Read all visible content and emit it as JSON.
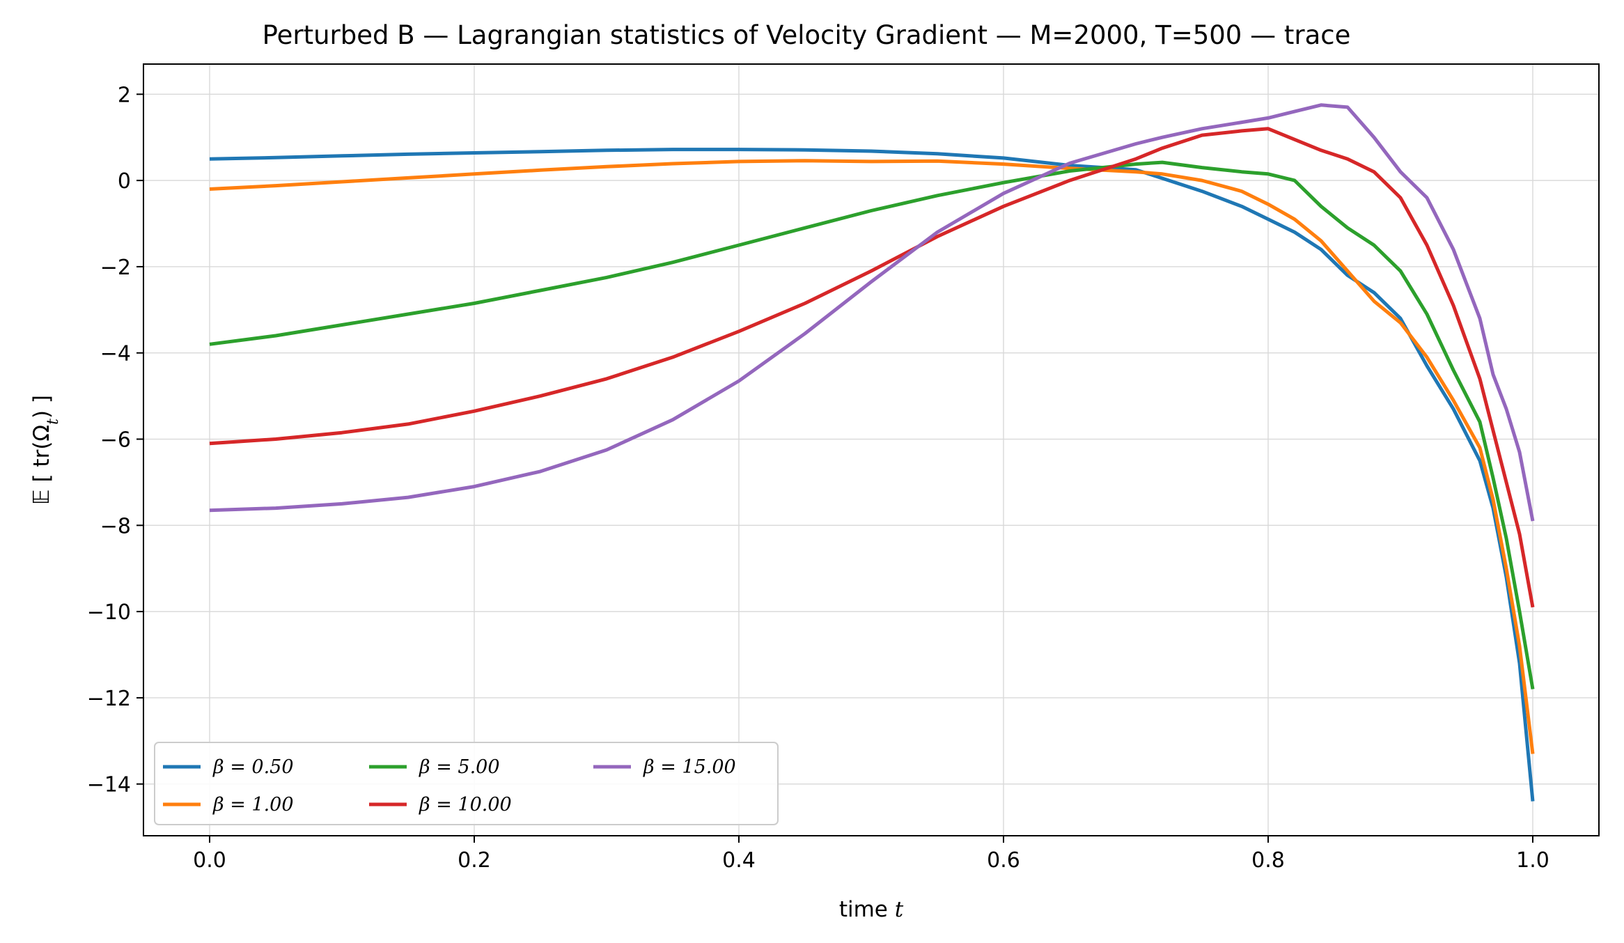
{
  "chart_data": {
    "type": "line",
    "title": "Perturbed B — Lagrangian statistics of Velocity Gradient — M=2000, T=500 — trace",
    "xlabel": "time t",
    "ylabel": "𝔼 [ tr(Ω_t) ]",
    "xlim": [
      -0.05,
      1.05
    ],
    "ylim": [
      -15.2,
      2.7
    ],
    "xticks": [
      0.0,
      0.2,
      0.4,
      0.6,
      0.8,
      1.0
    ],
    "xtick_labels": [
      "0.0",
      "0.2",
      "0.4",
      "0.6",
      "0.8",
      "1.0"
    ],
    "yticks": [
      2,
      0,
      -2,
      -4,
      -6,
      -8,
      -10,
      -12,
      -14
    ],
    "ytick_labels": [
      "2",
      "0",
      "−2",
      "−4",
      "−6",
      "−8",
      "−10",
      "−12",
      "−14"
    ],
    "grid": true,
    "legend_position": "lower-left",
    "legend_columns": 3,
    "series": [
      {
        "name": "β = 0.50",
        "color": "#1f77b4",
        "x": [
          0,
          0.05,
          0.1,
          0.15,
          0.2,
          0.25,
          0.3,
          0.35,
          0.4,
          0.45,
          0.5,
          0.55,
          0.6,
          0.65,
          0.7,
          0.72,
          0.75,
          0.78,
          0.8,
          0.82,
          0.84,
          0.86,
          0.88,
          0.9,
          0.92,
          0.94,
          0.96,
          0.97,
          0.98,
          0.99,
          1.0
        ],
        "values": [
          0.5,
          0.53,
          0.57,
          0.61,
          0.64,
          0.67,
          0.7,
          0.72,
          0.72,
          0.71,
          0.68,
          0.62,
          0.52,
          0.35,
          0.25,
          0.05,
          -0.25,
          -0.6,
          -0.9,
          -1.2,
          -1.6,
          -2.2,
          -2.6,
          -3.2,
          -4.3,
          -5.3,
          -6.5,
          -7.6,
          -9.2,
          -11.2,
          -14.4
        ]
      },
      {
        "name": "β = 1.00",
        "color": "#ff7f0e",
        "x": [
          0,
          0.05,
          0.1,
          0.15,
          0.2,
          0.25,
          0.3,
          0.35,
          0.4,
          0.45,
          0.5,
          0.55,
          0.6,
          0.65,
          0.7,
          0.72,
          0.75,
          0.78,
          0.8,
          0.82,
          0.84,
          0.86,
          0.88,
          0.9,
          0.92,
          0.94,
          0.96,
          0.97,
          0.98,
          0.99,
          1.0
        ],
        "values": [
          -0.2,
          -0.12,
          -0.03,
          0.06,
          0.15,
          0.24,
          0.32,
          0.39,
          0.44,
          0.46,
          0.44,
          0.45,
          0.38,
          0.28,
          0.2,
          0.15,
          0.0,
          -0.25,
          -0.55,
          -0.9,
          -1.4,
          -2.1,
          -2.8,
          -3.3,
          -4.1,
          -5.1,
          -6.2,
          -7.4,
          -9.0,
          -10.8,
          -13.3
        ]
      },
      {
        "name": "β = 5.00",
        "color": "#2ca02c",
        "x": [
          0,
          0.05,
          0.1,
          0.15,
          0.2,
          0.25,
          0.3,
          0.35,
          0.4,
          0.45,
          0.5,
          0.55,
          0.6,
          0.65,
          0.7,
          0.72,
          0.75,
          0.78,
          0.8,
          0.82,
          0.84,
          0.86,
          0.88,
          0.9,
          0.92,
          0.94,
          0.96,
          0.97,
          0.98,
          0.99,
          1.0
        ],
        "values": [
          -3.8,
          -3.6,
          -3.35,
          -3.1,
          -2.85,
          -2.55,
          -2.25,
          -1.9,
          -1.5,
          -1.1,
          -0.7,
          -0.35,
          -0.05,
          0.22,
          0.38,
          0.42,
          0.3,
          0.2,
          0.15,
          0.0,
          -0.6,
          -1.1,
          -1.5,
          -2.1,
          -3.1,
          -4.4,
          -5.6,
          -6.9,
          -8.3,
          -10.0,
          -11.8
        ]
      },
      {
        "name": "β = 10.00",
        "color": "#d62728",
        "x": [
          0,
          0.05,
          0.1,
          0.15,
          0.2,
          0.25,
          0.3,
          0.35,
          0.4,
          0.45,
          0.5,
          0.55,
          0.6,
          0.65,
          0.7,
          0.72,
          0.75,
          0.78,
          0.8,
          0.82,
          0.84,
          0.86,
          0.88,
          0.9,
          0.92,
          0.94,
          0.96,
          0.97,
          0.98,
          0.99,
          1.0
        ],
        "values": [
          -6.1,
          -6.0,
          -5.85,
          -5.65,
          -5.35,
          -5.0,
          -4.6,
          -4.1,
          -3.5,
          -2.85,
          -2.1,
          -1.3,
          -0.6,
          0.0,
          0.5,
          0.75,
          1.05,
          1.15,
          1.2,
          0.95,
          0.7,
          0.5,
          0.2,
          -0.4,
          -1.5,
          -2.9,
          -4.6,
          -5.8,
          -7.0,
          -8.2,
          -9.9
        ]
      },
      {
        "name": "β = 15.00",
        "color": "#9467bd",
        "x": [
          0,
          0.05,
          0.1,
          0.15,
          0.2,
          0.25,
          0.3,
          0.35,
          0.4,
          0.45,
          0.5,
          0.55,
          0.6,
          0.65,
          0.7,
          0.72,
          0.75,
          0.78,
          0.8,
          0.82,
          0.84,
          0.86,
          0.88,
          0.9,
          0.92,
          0.94,
          0.96,
          0.97,
          0.98,
          0.99,
          1.0
        ],
        "values": [
          -7.65,
          -7.6,
          -7.5,
          -7.35,
          -7.1,
          -6.75,
          -6.25,
          -5.55,
          -4.65,
          -3.55,
          -2.35,
          -1.2,
          -0.3,
          0.4,
          0.85,
          1.0,
          1.2,
          1.35,
          1.45,
          1.6,
          1.75,
          1.7,
          1.0,
          0.2,
          -0.4,
          -1.6,
          -3.2,
          -4.5,
          -5.3,
          -6.3,
          -7.9
        ]
      }
    ]
  }
}
